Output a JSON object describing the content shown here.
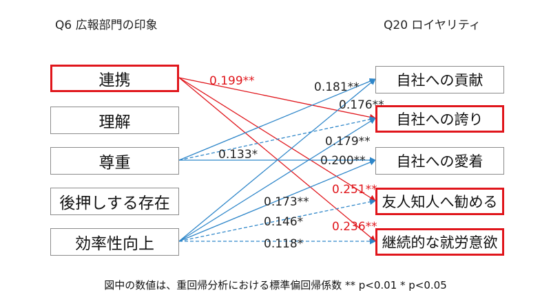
{
  "header": {
    "left": "Q6 広報部門の印象",
    "right": "Q20 ロイヤリティ"
  },
  "left_items": [
    {
      "label": "連携",
      "highlight": true
    },
    {
      "label": "理解",
      "highlight": false
    },
    {
      "label": "尊重",
      "highlight": false
    },
    {
      "label": "後押しする存在",
      "highlight": false
    },
    {
      "label": "効率性向上",
      "highlight": false
    }
  ],
  "right_items": [
    {
      "label": "自社への貢献",
      "highlight": false
    },
    {
      "label": "自社への誇り",
      "highlight": true
    },
    {
      "label": "自社への愛着",
      "highlight": false
    },
    {
      "label": "友人知人へ勧める",
      "highlight": true
    },
    {
      "label": "継続的な就労意欲",
      "highlight": true
    }
  ],
  "paths": [
    {
      "from": 0,
      "to": 1,
      "coef": "0.199**",
      "color": "#e0151b",
      "dashed": false
    },
    {
      "from": 0,
      "to": 3,
      "coef": "0.251**",
      "color": "#e0151b",
      "dashed": false
    },
    {
      "from": 0,
      "to": 4,
      "coef": "0.236**",
      "color": "#e0151b",
      "dashed": false
    },
    {
      "from": 2,
      "to": 0,
      "coef": "0.181**",
      "color": "#2e86c9",
      "dashed": false
    },
    {
      "from": 2,
      "to": 1,
      "coef": "0.133*",
      "color": "#2e86c9",
      "dashed": true
    },
    {
      "from": 2,
      "to": 2,
      "coef": "0.200**",
      "color": "#2e86c9",
      "dashed": false
    },
    {
      "from": 4,
      "to": 0,
      "coef": "0.176**",
      "color": "#2e86c9",
      "dashed": false
    },
    {
      "from": 4,
      "to": 2,
      "coef": "0.179**",
      "color": "#2e86c9",
      "dashed": false
    },
    {
      "from": 4,
      "to": 3,
      "coef": "0.146*",
      "color": "#2e86c9",
      "dashed": true
    },
    {
      "from": 4,
      "to": 4,
      "coef": "0.118*",
      "color": "#2e86c9",
      "dashed": true
    },
    {
      "from": 4,
      "to": 1,
      "coef": "0.173**",
      "color": "#2e86c9",
      "dashed": false
    }
  ],
  "footnote": "図中の数値は、重回帰分析における標準偏回帰係数  ** p<0.01 * p<0.05"
}
